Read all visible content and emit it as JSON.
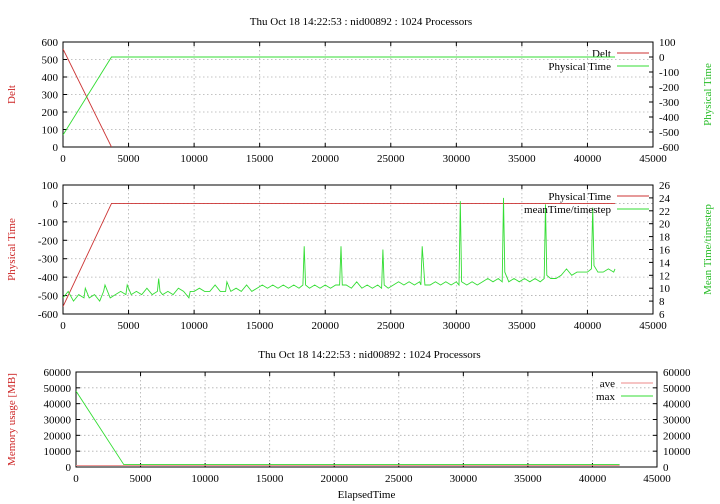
{
  "chart_data": [
    {
      "type": "line",
      "title": "Thu Oct 18 14:22:53 : nid00892 : 1024 Processors",
      "xlabel": "",
      "ylabel": "Delt",
      "y2label": "Physical Time",
      "xlim": [
        0,
        45000
      ],
      "ylim": [
        0,
        600
      ],
      "y2lim": [
        -600,
        100
      ],
      "xticks": [
        0,
        5000,
        10000,
        15000,
        20000,
        25000,
        30000,
        35000,
        40000,
        45000
      ],
      "yticks": [
        0,
        100,
        200,
        300,
        400,
        500,
        600
      ],
      "y2ticks": [
        -600,
        -500,
        -400,
        -300,
        -200,
        -100,
        0,
        100
      ],
      "grid": true,
      "legend_position": "top-right",
      "series": [
        {
          "name": "Delt",
          "axis": "y",
          "color": "#cc3333",
          "x": [
            0,
            3700
          ],
          "y": [
            560,
            0
          ]
        },
        {
          "name": "Physical Time",
          "axis": "y2",
          "color": "#33dd33",
          "x": [
            0,
            3700,
            42100
          ],
          "y": [
            -520,
            0,
            0
          ]
        }
      ]
    },
    {
      "type": "line",
      "title": "",
      "xlabel": "",
      "ylabel": "Physical Time",
      "y2label": "Mean Time/timestep",
      "xlim": [
        0,
        45000
      ],
      "ylim": [
        -600,
        100
      ],
      "y2lim": [
        6,
        26
      ],
      "xticks": [
        0,
        5000,
        10000,
        15000,
        20000,
        25000,
        30000,
        35000,
        40000,
        45000
      ],
      "yticks": [
        -600,
        -500,
        -400,
        -300,
        -200,
        -100,
        0,
        100
      ],
      "y2ticks": [
        6,
        8,
        10,
        12,
        14,
        16,
        18,
        20,
        22,
        24,
        26
      ],
      "grid": true,
      "legend_position": "top-right",
      "series": [
        {
          "name": "Physical Time",
          "axis": "y",
          "color": "#cc3333",
          "x": [
            0,
            3700,
            42100
          ],
          "y": [
            -560,
            0,
            0
          ]
        },
        {
          "name": "meanTime/timestep",
          "axis": "y2",
          "color": "#33dd33",
          "x": [
            0,
            400,
            800,
            1200,
            1600,
            1700,
            2000,
            2400,
            2800,
            3100,
            3200,
            3600,
            4000,
            4400,
            4800,
            4900,
            5200,
            5600,
            6000,
            6400,
            6800,
            7200,
            7300,
            7400,
            7600,
            8000,
            8400,
            8800,
            9200,
            9600,
            9700,
            10000,
            10400,
            10800,
            11200,
            11600,
            12000,
            12400,
            12500,
            12800,
            13200,
            13600,
            14000,
            14400,
            14800,
            15200,
            15600,
            16000,
            16400,
            16800,
            17200,
            17600,
            18000,
            18300,
            18400,
            18500,
            18800,
            19200,
            19600,
            20000,
            20400,
            20800,
            21100,
            21200,
            21300,
            21600,
            22000,
            22400,
            22800,
            23200,
            23600,
            24000,
            24300,
            24400,
            24500,
            24800,
            25200,
            25600,
            26000,
            26400,
            26800,
            27200,
            27300,
            27400,
            27600,
            28000,
            28400,
            28800,
            29200,
            29600,
            30000,
            30200,
            30300,
            30400,
            30800,
            31200,
            31600,
            32000,
            32400,
            32800,
            33200,
            33500,
            33600,
            33700,
            34000,
            34400,
            34800,
            35200,
            35600,
            36000,
            36400,
            36700,
            36800,
            36900,
            37200,
            37600,
            38000,
            38400,
            38800,
            39200,
            39600,
            40000,
            40300,
            40400,
            40500,
            40800,
            41200,
            41600,
            42000,
            42100
          ],
          "y": [
            8.5,
            9.5,
            8.0,
            9.0,
            8.5,
            10.0,
            8.5,
            9.0,
            8.0,
            9.5,
            10.5,
            8.5,
            9.0,
            9.5,
            9.0,
            10.5,
            9.0,
            9.5,
            9.0,
            10.0,
            9.0,
            9.5,
            11.5,
            9.5,
            9.0,
            9.5,
            9.0,
            10.0,
            9.5,
            8.5,
            9.5,
            9.5,
            10.0,
            9.5,
            9.5,
            10.5,
            9.5,
            9.5,
            11.0,
            9.5,
            10.0,
            9.5,
            10.5,
            9.5,
            10.0,
            10.5,
            10.0,
            10.5,
            10.0,
            10.5,
            10.0,
            10.5,
            10.0,
            10.5,
            16.5,
            10.5,
            10.0,
            10.5,
            10.0,
            10.5,
            10.0,
            10.5,
            10.5,
            16.5,
            10.5,
            10.5,
            10.0,
            11.0,
            10.0,
            10.5,
            10.0,
            10.5,
            10.0,
            16.0,
            10.5,
            10.0,
            10.5,
            11.0,
            10.5,
            11.0,
            10.5,
            11.0,
            10.5,
            16.5,
            10.5,
            10.5,
            11.0,
            10.5,
            11.0,
            10.5,
            11.0,
            10.5,
            23.5,
            11.0,
            10.5,
            11.0,
            10.5,
            11.0,
            11.5,
            11.0,
            11.5,
            11.0,
            24.0,
            12.5,
            11.0,
            11.5,
            11.0,
            11.5,
            11.0,
            11.5,
            11.0,
            11.5,
            23.0,
            12.0,
            11.5,
            11.5,
            12.0,
            13.0,
            12.0,
            12.5,
            12.5,
            12.5,
            13.0,
            22.5,
            13.5,
            12.5,
            12.5,
            13.0,
            12.5,
            13.0
          ]
        }
      ]
    },
    {
      "type": "line",
      "title": "Thu Oct 18 14:22:53 : nid00892 : 1024 Processors",
      "xlabel": "ElapsedTime",
      "ylabel": "Memory usage [MB]",
      "y2label": "",
      "xlim": [
        0,
        45000
      ],
      "ylim": [
        0,
        60000
      ],
      "y2lim": [
        0,
        60000
      ],
      "xticks": [
        0,
        5000,
        10000,
        15000,
        20000,
        25000,
        30000,
        35000,
        40000,
        45000
      ],
      "yticks": [
        0,
        10000,
        20000,
        30000,
        40000,
        50000,
        60000
      ],
      "y2ticks": [
        0,
        10000,
        20000,
        30000,
        40000,
        50000,
        60000
      ],
      "grid": true,
      "legend_position": "top-right",
      "series": [
        {
          "name": "ave",
          "axis": "y",
          "color": "#ee8888",
          "x": [
            0,
            42100
          ],
          "y": [
            1000,
            1000
          ]
        },
        {
          "name": "max",
          "axis": "y",
          "color": "#33dd33",
          "x": [
            0,
            3700,
            42100
          ],
          "y": [
            48000,
            1500,
            1500
          ]
        }
      ]
    }
  ]
}
